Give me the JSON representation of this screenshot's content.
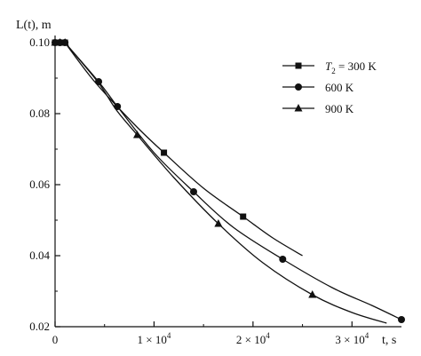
{
  "chart_data": {
    "type": "line",
    "xlabel": "t, s",
    "ylabel": "L(t), m",
    "xlim": [
      0,
      35000
    ],
    "ylim": [
      0.02,
      0.1
    ],
    "x_ticks": [
      0,
      10000,
      20000,
      30000
    ],
    "x_tick_labels": [
      "0",
      "1 × 10^4",
      "2 × 10^4",
      "3 × 10^4"
    ],
    "y_ticks": [
      0.02,
      0.04,
      0.06,
      0.08,
      0.1
    ],
    "y_tick_labels": [
      "0.02",
      "0.04",
      "0.06",
      "0.08",
      "0.10"
    ],
    "grid": false,
    "legend": {
      "placement": "top-right",
      "title_prefix": "T_2 = "
    },
    "series": [
      {
        "name": "300 K",
        "marker": "square",
        "points": [
          [
            0,
            0.1
          ],
          [
            500,
            0.1
          ],
          [
            1000,
            0.1
          ],
          [
            11000,
            0.069
          ],
          [
            19000,
            0.051
          ]
        ],
        "curve": [
          [
            1000,
            0.1
          ],
          [
            4000,
            0.089
          ],
          [
            8000,
            0.077
          ],
          [
            11000,
            0.069
          ],
          [
            15000,
            0.059
          ],
          [
            19000,
            0.051
          ],
          [
            22000,
            0.045
          ],
          [
            25000,
            0.04
          ]
        ]
      },
      {
        "name": "600 K",
        "marker": "circle",
        "points": [
          [
            0,
            0.1
          ],
          [
            500,
            0.1
          ],
          [
            1000,
            0.1
          ],
          [
            4400,
            0.089
          ],
          [
            6300,
            0.082
          ],
          [
            14000,
            0.058
          ],
          [
            23000,
            0.039
          ],
          [
            35000,
            0.022
          ]
        ],
        "curve": [
          [
            1000,
            0.1
          ],
          [
            4400,
            0.089
          ],
          [
            6300,
            0.082
          ],
          [
            10000,
            0.069
          ],
          [
            14000,
            0.058
          ],
          [
            18000,
            0.048
          ],
          [
            23000,
            0.039
          ],
          [
            28000,
            0.031
          ],
          [
            32000,
            0.026
          ],
          [
            35000,
            0.022
          ]
        ]
      },
      {
        "name": "900 K",
        "marker": "triangle",
        "points": [
          [
            0,
            0.1
          ],
          [
            500,
            0.1
          ],
          [
            1000,
            0.1
          ],
          [
            8300,
            0.074
          ],
          [
            16500,
            0.049
          ],
          [
            26000,
            0.029
          ]
        ],
        "curve": [
          [
            1000,
            0.1
          ],
          [
            4300,
            0.089
          ],
          [
            6200,
            0.081
          ],
          [
            8300,
            0.074
          ],
          [
            12000,
            0.062
          ],
          [
            16500,
            0.049
          ],
          [
            21000,
            0.038
          ],
          [
            26000,
            0.029
          ],
          [
            30000,
            0.024
          ],
          [
            33500,
            0.021
          ]
        ]
      }
    ]
  }
}
